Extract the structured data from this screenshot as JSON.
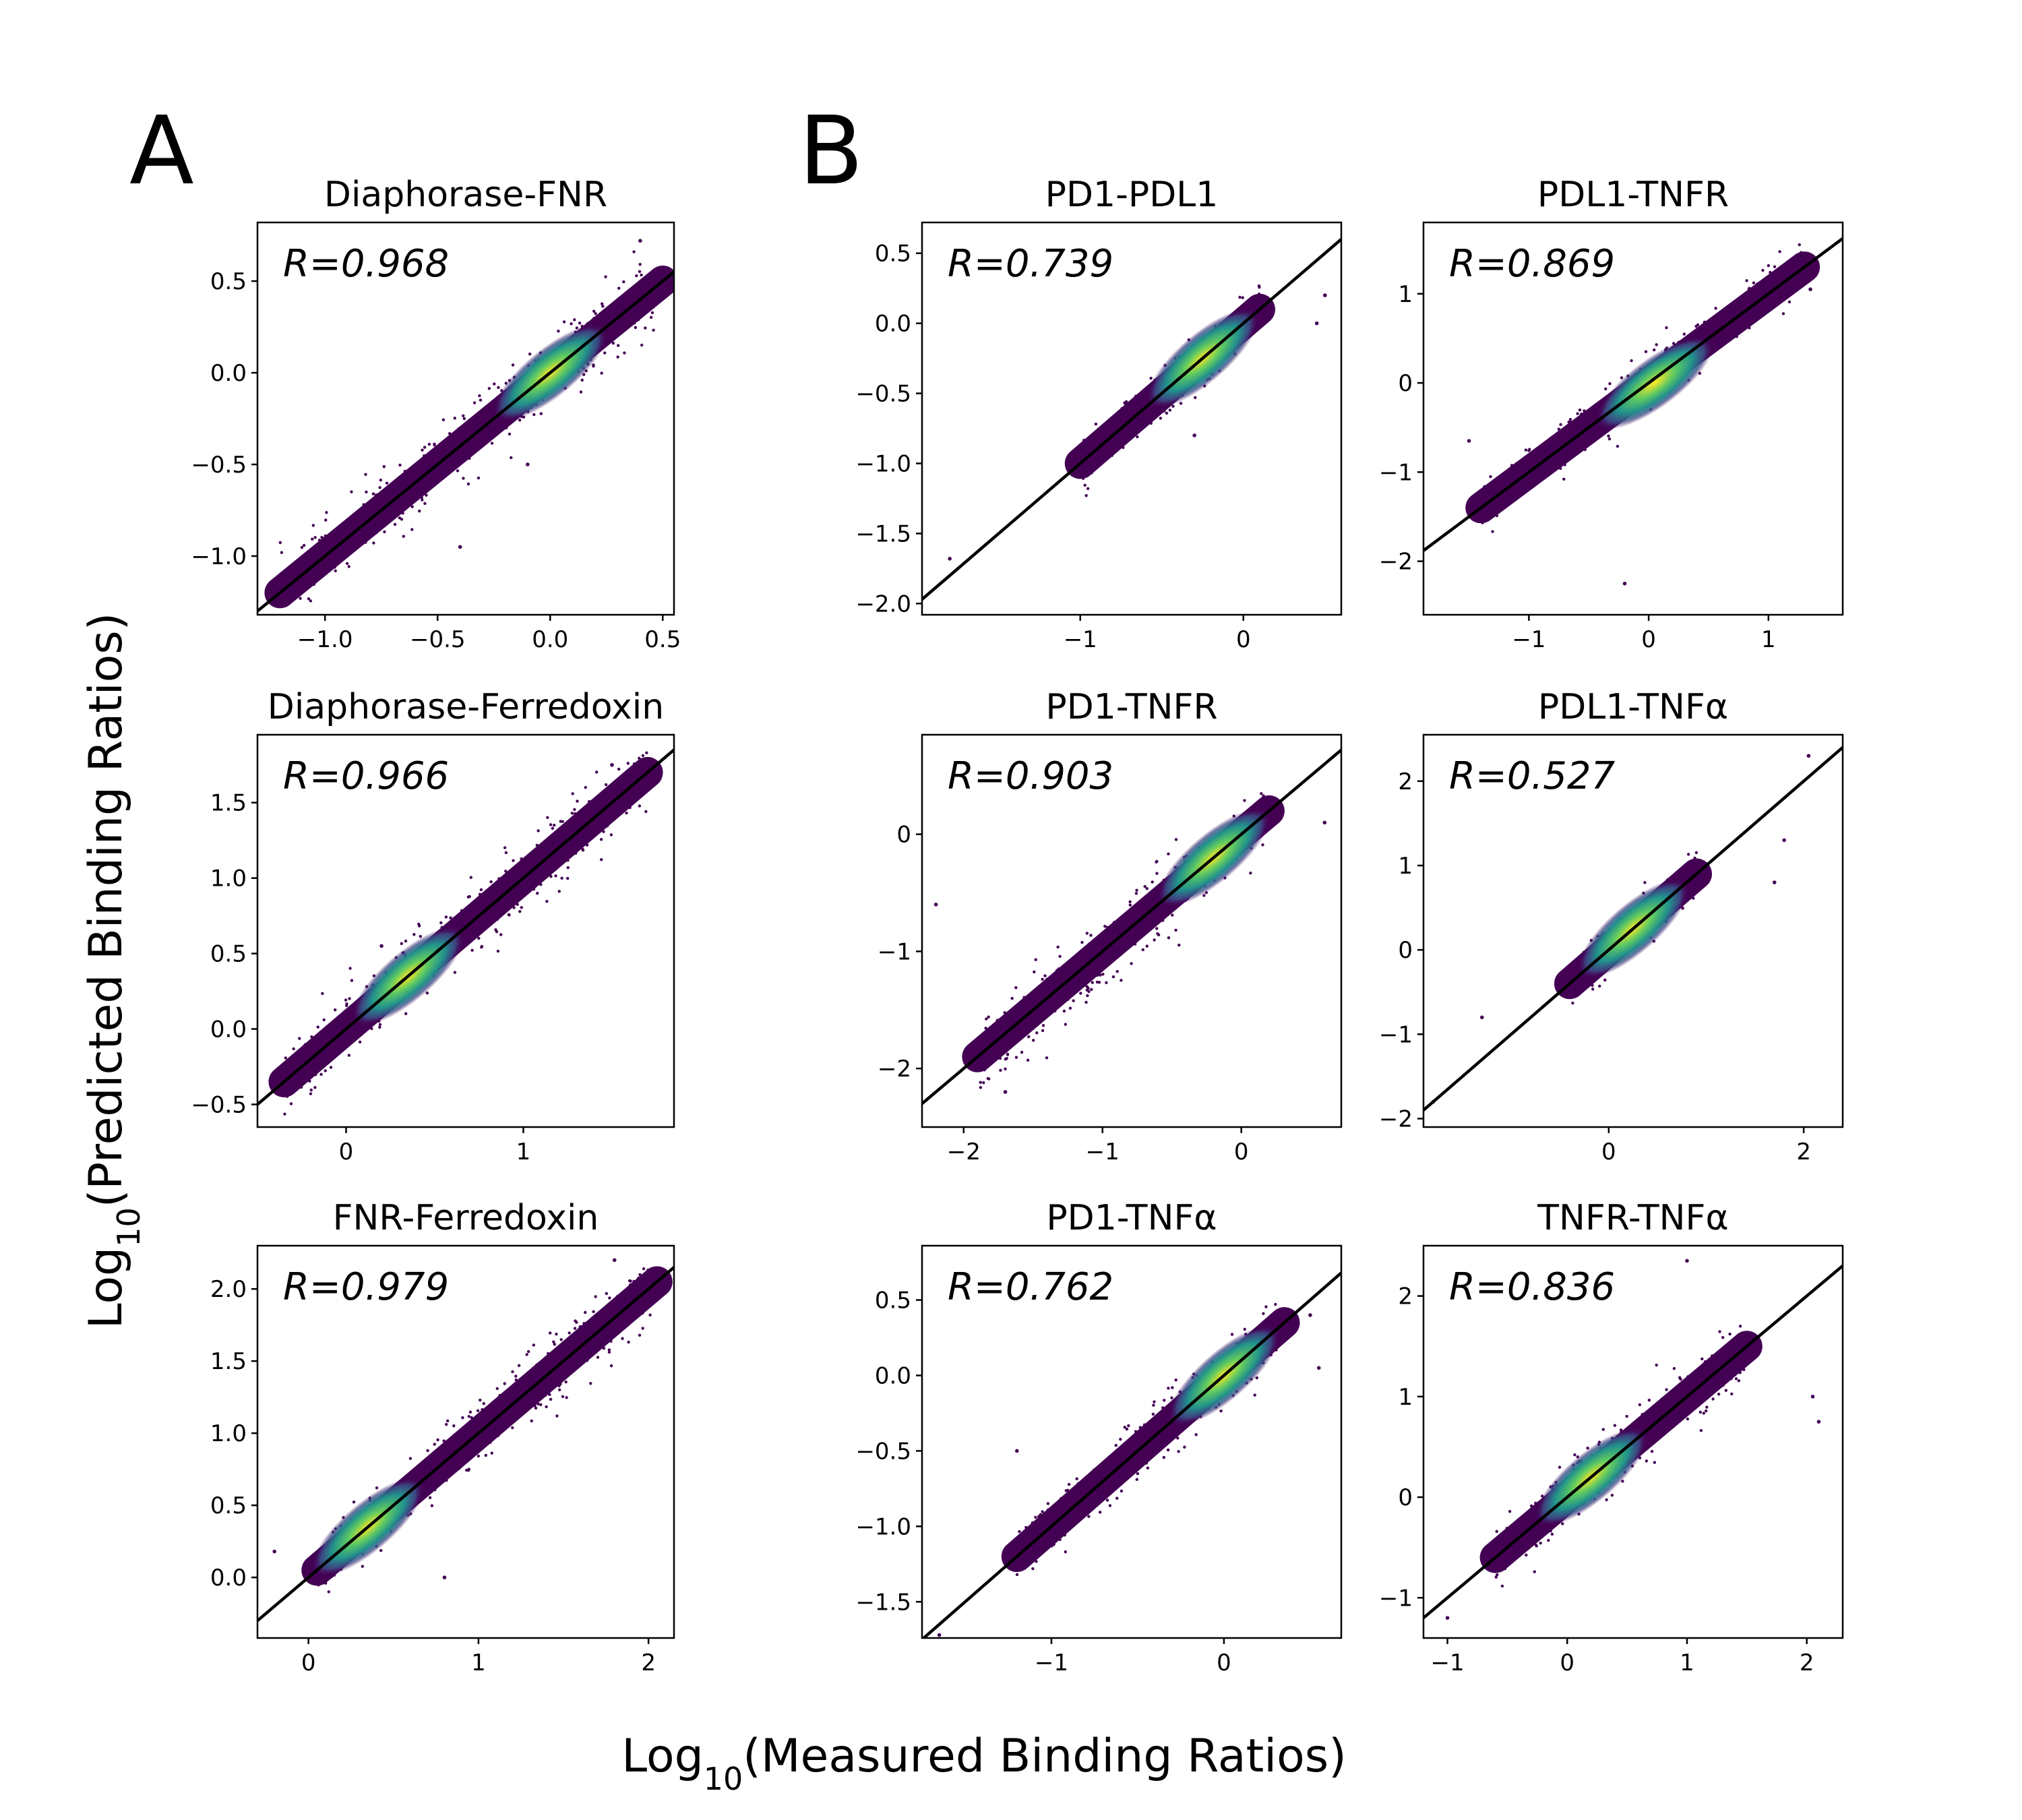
{
  "figure": {
    "panel_letters": [
      "A",
      "B"
    ],
    "xlabel": {
      "prefix": "Log",
      "sub": "10",
      "suffix": "(Measured Binding Ratios)"
    },
    "ylabel": {
      "prefix": "Log",
      "sub": "10",
      "suffix": "(Predicted Binding Ratios)"
    }
  },
  "colors": {
    "low": "#440154",
    "mid1": "#3b528b",
    "mid2": "#21918c",
    "mid3": "#5ec962",
    "high": "#fde725"
  },
  "chart_data": [
    {
      "type": "scatter",
      "title": "Diaphorase-FNR",
      "r_label": "R=0.968",
      "xlim": [
        -1.3,
        0.55
      ],
      "ylim": [
        -1.32,
        0.82
      ],
      "xticks": [
        -1.0,
        -0.5,
        0.0,
        0.5
      ],
      "xticklabels": [
        "−1.0",
        "−0.5",
        "0.0",
        "0.5"
      ],
      "yticks": [
        -1.0,
        -0.5,
        0.0,
        0.5
      ],
      "yticklabels": [
        "−1.0",
        "−0.5",
        "0.0",
        "0.5"
      ],
      "fit_line": {
        "slope": 1.0,
        "intercept": 0.0
      },
      "density": {
        "x_range": [
          -1.2,
          0.5
        ],
        "center": [
          0.0,
          0.0
        ],
        "spread": 0.1
      },
      "points": [
        [
          -1.0,
          -1.08
        ],
        [
          0.4,
          0.72
        ],
        [
          -0.1,
          -0.5
        ],
        [
          -0.4,
          -0.95
        ]
      ]
    },
    {
      "type": "scatter",
      "title": "Diaphorase-Ferredoxin",
      "r_label": "R=0.966",
      "xlim": [
        -0.5,
        1.85
      ],
      "ylim": [
        -0.65,
        1.95
      ],
      "xticks": [
        0,
        1
      ],
      "xticklabels": [
        "0",
        "1"
      ],
      "yticks": [
        -0.5,
        0.0,
        0.5,
        1.0,
        1.5
      ],
      "yticklabels": [
        "−0.5",
        "0.0",
        "0.5",
        "1.0",
        "1.5"
      ],
      "fit_line": {
        "slope": 1.0,
        "intercept": 0.0
      },
      "density": {
        "x_range": [
          -0.35,
          1.7
        ],
        "center": [
          0.35,
          0.35
        ],
        "spread": 0.12
      },
      "points": [
        [
          1.5,
          1.75
        ],
        [
          0.2,
          0.55
        ]
      ]
    },
    {
      "type": "scatter",
      "title": "FNR-Ferredoxin",
      "r_label": "R=0.979",
      "xlim": [
        -0.3,
        2.15
      ],
      "ylim": [
        -0.42,
        2.3
      ],
      "xticks": [
        0,
        1,
        2
      ],
      "xticklabels": [
        "0",
        "1",
        "2"
      ],
      "yticks": [
        0.0,
        0.5,
        1.0,
        1.5,
        2.0
      ],
      "yticklabels": [
        "0.0",
        "0.5",
        "1.0",
        "1.5",
        "2.0"
      ],
      "fit_line": {
        "slope": 1.0,
        "intercept": 0.0
      },
      "density": {
        "x_range": [
          0.05,
          2.05
        ],
        "center": [
          0.35,
          0.35
        ],
        "spread": 0.12
      },
      "points": [
        [
          -0.2,
          0.18
        ],
        [
          0.8,
          0.0
        ],
        [
          1.8,
          2.2
        ]
      ]
    },
    {
      "type": "scatter",
      "title": "PD1-PDL1",
      "r_label": "R=0.739",
      "xlim": [
        -1.97,
        0.6
      ],
      "ylim": [
        -2.08,
        0.72
      ],
      "xticks": [
        -1,
        0
      ],
      "xticklabels": [
        "−1",
        "0"
      ],
      "yticks": [
        -2.0,
        -1.5,
        -1.0,
        -0.5,
        0.0,
        0.5
      ],
      "yticklabels": [
        "−2.0",
        "−1.5",
        "−1.0",
        "−0.5",
        "0.0",
        "0.5"
      ],
      "fit_line": {
        "slope": 1.0,
        "intercept": 0.0
      },
      "density": {
        "x_range": [
          -1.0,
          0.1
        ],
        "center": [
          -0.25,
          -0.25
        ],
        "spread": 0.08
      },
      "points": [
        [
          -1.8,
          -1.68
        ],
        [
          0.5,
          0.2
        ],
        [
          0.45,
          -0.0
        ],
        [
          -0.3,
          -0.8
        ]
      ]
    },
    {
      "type": "scatter",
      "title": "PDL1-TNFR",
      "r_label": "R=0.869",
      "xlim": [
        -1.88,
        1.62
      ],
      "ylim": [
        -2.6,
        1.8
      ],
      "xticks": [
        -1,
        0,
        1
      ],
      "xticklabels": [
        "−1",
        "0",
        "1"
      ],
      "yticks": [
        -2,
        -1,
        0,
        1
      ],
      "yticklabels": [
        "−2",
        "−1",
        "0",
        "1"
      ],
      "fit_line": {
        "slope": 1.0,
        "intercept": 0.0
      },
      "density": {
        "x_range": [
          -1.4,
          1.3
        ],
        "center": [
          0.05,
          0.0
        ],
        "spread": 0.15
      },
      "points": [
        [
          1.35,
          1.05
        ],
        [
          -1.5,
          -0.65
        ],
        [
          -0.2,
          -2.25
        ]
      ]
    },
    {
      "type": "scatter",
      "title": "PD1-TNFR",
      "r_label": "R=0.903",
      "xlim": [
        -2.3,
        0.72
      ],
      "ylim": [
        -2.5,
        0.85
      ],
      "xticks": [
        -2,
        -1,
        0
      ],
      "xticklabels": [
        "−2",
        "−1",
        "0"
      ],
      "yticks": [
        -2,
        -1,
        0
      ],
      "yticklabels": [
        "−2",
        "−1",
        "0"
      ],
      "fit_line": {
        "slope": 1.0,
        "intercept": 0.0
      },
      "density": {
        "x_range": [
          -1.9,
          0.2
        ],
        "center": [
          -0.2,
          -0.2
        ],
        "spread": 0.15
      },
      "points": [
        [
          -2.2,
          -0.6
        ],
        [
          0.6,
          0.1
        ],
        [
          -1.7,
          -2.2
        ]
      ]
    },
    {
      "type": "scatter",
      "title": "PDL1-TNFα",
      "r_label": "R=0.527",
      "xlim": [
        -1.9,
        2.4
      ],
      "ylim": [
        -2.1,
        2.55
      ],
      "xticks": [
        0,
        2
      ],
      "xticklabels": [
        "0",
        "2"
      ],
      "yticks": [
        -2,
        -1,
        0,
        1,
        2
      ],
      "yticklabels": [
        "−2",
        "−1",
        "0",
        "1",
        "2"
      ],
      "fit_line": {
        "slope": 1.0,
        "intercept": 0.0
      },
      "density": {
        "x_range": [
          -0.4,
          0.9
        ],
        "center": [
          0.25,
          0.25
        ],
        "spread": 0.12
      },
      "points": [
        [
          2.05,
          2.3
        ],
        [
          1.8,
          1.3
        ],
        [
          1.7,
          0.8
        ],
        [
          -1.3,
          -0.8
        ],
        [
          -1.8,
          -1.8
        ]
      ]
    },
    {
      "type": "scatter",
      "title": "PD1-TNFα",
      "r_label": "R=0.762",
      "xlim": [
        -1.75,
        0.68
      ],
      "ylim": [
        -1.74,
        0.86
      ],
      "xticks": [
        -1,
        0
      ],
      "xticklabels": [
        "−1",
        "0"
      ],
      "yticks": [
        -1.5,
        -1.0,
        -0.5,
        0.0,
        0.5
      ],
      "yticklabels": [
        "−1.5",
        "−1.0",
        "−0.5",
        "0.0",
        "0.5"
      ],
      "fit_line": {
        "slope": 1.0,
        "intercept": 0.0
      },
      "density": {
        "x_range": [
          -1.2,
          0.35
        ],
        "center": [
          0.0,
          0.0
        ],
        "spread": 0.1
      },
      "points": [
        [
          -1.65,
          -1.72
        ],
        [
          0.5,
          0.4
        ],
        [
          0.55,
          0.05
        ],
        [
          -1.2,
          -0.5
        ],
        [
          -0.8,
          -0.9
        ]
      ]
    },
    {
      "type": "scatter",
      "title": "TNFR-TNFα",
      "r_label": "R=0.836",
      "xlim": [
        -1.2,
        2.3
      ],
      "ylim": [
        -1.4,
        2.5
      ],
      "xticks": [
        -1,
        0,
        1,
        2
      ],
      "xticklabels": [
        "−1",
        "0",
        "1",
        "2"
      ],
      "yticks": [
        -1,
        0,
        1,
        2
      ],
      "yticklabels": [
        "−1",
        "0",
        "1",
        "2"
      ],
      "fit_line": {
        "slope": 1.0,
        "intercept": 0.0
      },
      "density": {
        "x_range": [
          -0.6,
          1.5
        ],
        "center": [
          0.2,
          0.2
        ],
        "spread": 0.15
      },
      "points": [
        [
          1.0,
          2.35
        ],
        [
          2.05,
          1.0
        ],
        [
          2.1,
          0.75
        ],
        [
          -1.0,
          -1.2
        ]
      ]
    }
  ]
}
